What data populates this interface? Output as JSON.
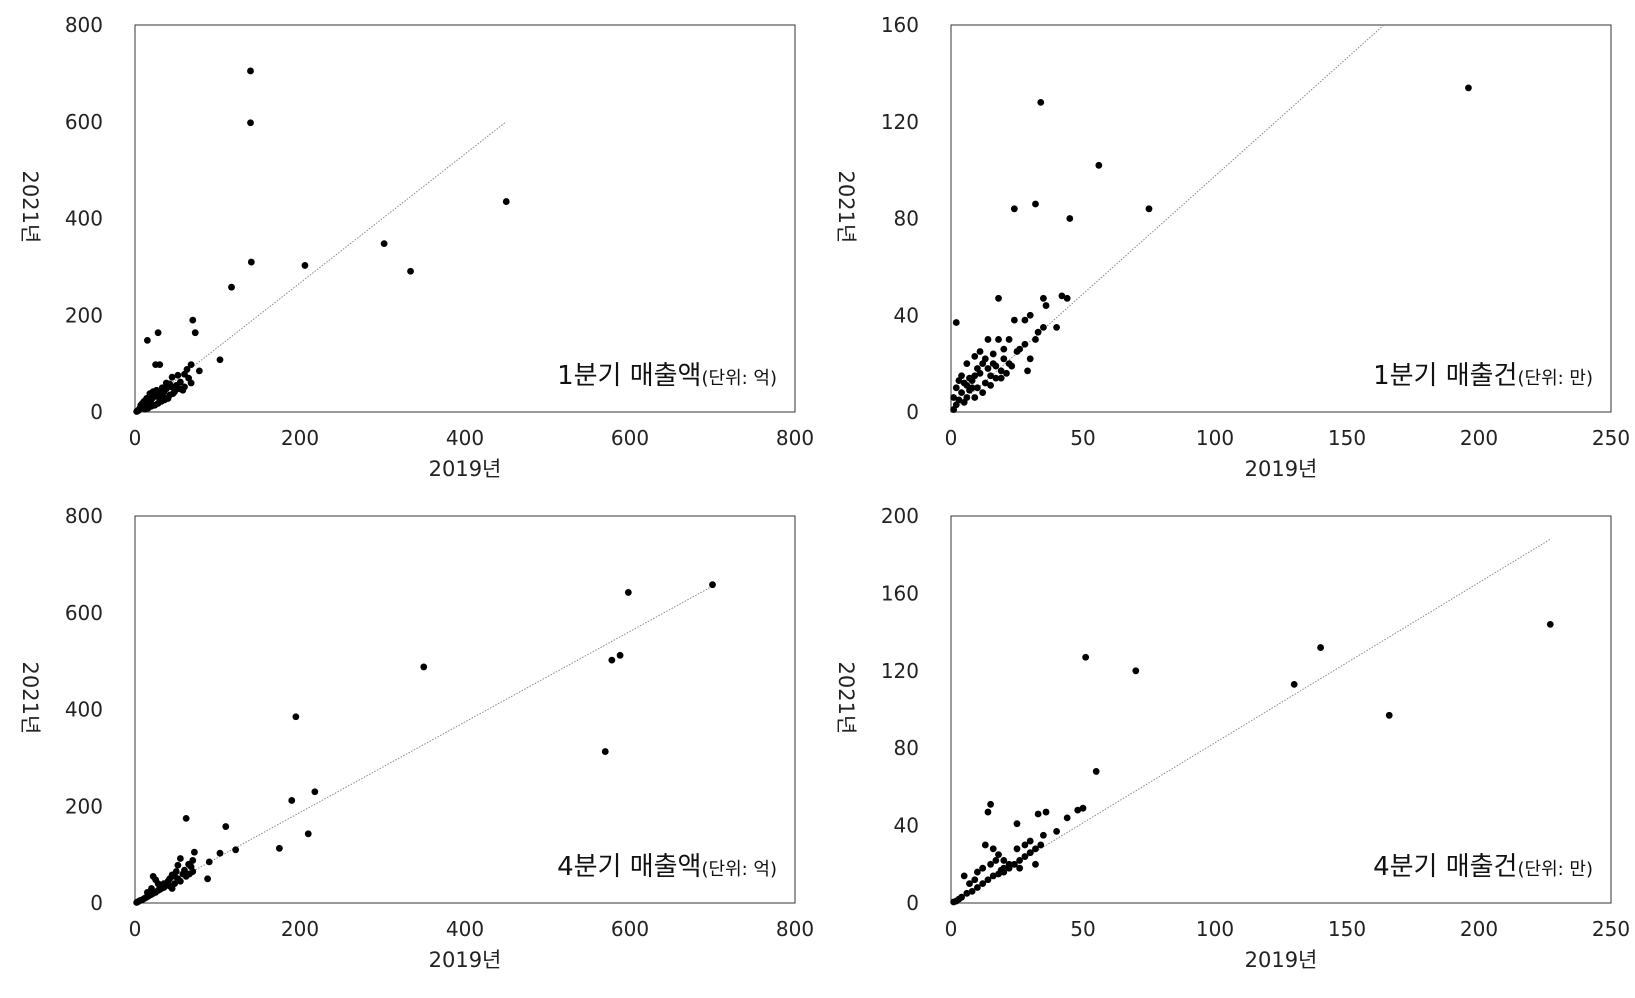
{
  "chart_data": [
    {
      "type": "scatter",
      "xlabel": "2019년",
      "ylabel": "2021년",
      "xlim": [
        0,
        800
      ],
      "ylim": [
        0,
        800
      ],
      "xticks": [
        "0",
        "200",
        "400",
        "600",
        "800"
      ],
      "yticks": [
        "0",
        "200",
        "400",
        "600",
        "800"
      ],
      "grid": false,
      "annotation": {
        "main": "1분기 매출액",
        "unit": "(단위: 억)"
      },
      "trendline": {
        "x": [
          0,
          450
        ],
        "y": [
          0,
          600
        ]
      },
      "points": [
        [
          140,
          705
        ],
        [
          140,
          598
        ],
        [
          141,
          310
        ],
        [
          117,
          258
        ],
        [
          206,
          303
        ],
        [
          302,
          348
        ],
        [
          334,
          291
        ],
        [
          450,
          435
        ],
        [
          70,
          190
        ],
        [
          73,
          164
        ],
        [
          28,
          164
        ],
        [
          15,
          148
        ],
        [
          25,
          98
        ],
        [
          30,
          98
        ],
        [
          103,
          108
        ],
        [
          78,
          85
        ],
        [
          68,
          98
        ],
        [
          63,
          88
        ],
        [
          60,
          78
        ],
        [
          52,
          76
        ],
        [
          45,
          72
        ],
        [
          68,
          60
        ],
        [
          55,
          62
        ],
        [
          60,
          52
        ],
        [
          58,
          45
        ],
        [
          50,
          55
        ],
        [
          42,
          58
        ],
        [
          38,
          48
        ],
        [
          35,
          42
        ],
        [
          30,
          38
        ],
        [
          28,
          32
        ],
        [
          25,
          36
        ],
        [
          22,
          30
        ],
        [
          20,
          26
        ],
        [
          18,
          22
        ],
        [
          15,
          20
        ],
        [
          12,
          16
        ],
        [
          10,
          12
        ],
        [
          8,
          10
        ],
        [
          6,
          8
        ],
        [
          5,
          5
        ],
        [
          4,
          3
        ],
        [
          3,
          2
        ],
        [
          2,
          1
        ],
        [
          35,
          30
        ],
        [
          32,
          22
        ],
        [
          28,
          18
        ],
        [
          24,
          14
        ],
        [
          20,
          12
        ],
        [
          16,
          8
        ],
        [
          42,
          35
        ],
        [
          48,
          42
        ],
        [
          40,
          28
        ],
        [
          36,
          25
        ],
        [
          22,
          42
        ],
        [
          18,
          38
        ],
        [
          14,
          28
        ],
        [
          11,
          22
        ],
        [
          9,
          18
        ],
        [
          7,
          14
        ],
        [
          12,
          6
        ],
        [
          26,
          45
        ],
        [
          44,
          52
        ],
        [
          54,
          48
        ],
        [
          65,
          70
        ],
        [
          46,
          38
        ],
        [
          33,
          50
        ],
        [
          38,
          60
        ],
        [
          20,
          34
        ],
        [
          30,
          26
        ]
      ]
    },
    {
      "type": "scatter",
      "xlabel": "2019년",
      "ylabel": "2021년",
      "xlim": [
        0,
        250
      ],
      "ylim": [
        0,
        160
      ],
      "xticks": [
        "0",
        "50",
        "100",
        "150",
        "200",
        "250"
      ],
      "yticks": [
        "0",
        "40",
        "80",
        "120",
        "160"
      ],
      "grid": false,
      "annotation": {
        "main": "1분기 매출건",
        "unit": "(단위: 만)"
      },
      "trendline": {
        "x": [
          0,
          164
        ],
        "y": [
          0,
          160
        ]
      },
      "points": [
        [
          196,
          134
        ],
        [
          34,
          128
        ],
        [
          56,
          102
        ],
        [
          32,
          86
        ],
        [
          24,
          84
        ],
        [
          45,
          80
        ],
        [
          75,
          84
        ],
        [
          2,
          37
        ],
        [
          18,
          47
        ],
        [
          35,
          47
        ],
        [
          42,
          48
        ],
        [
          44,
          47
        ],
        [
          36,
          44
        ],
        [
          30,
          40
        ],
        [
          28,
          38
        ],
        [
          24,
          38
        ],
        [
          35,
          35
        ],
        [
          40,
          35
        ],
        [
          33,
          33
        ],
        [
          32,
          30
        ],
        [
          28,
          28
        ],
        [
          26,
          26
        ],
        [
          25,
          25
        ],
        [
          30,
          22
        ],
        [
          29,
          17
        ],
        [
          22,
          20
        ],
        [
          20,
          22
        ],
        [
          19,
          17
        ],
        [
          17,
          19
        ],
        [
          15,
          15
        ],
        [
          14,
          18
        ],
        [
          13,
          22
        ],
        [
          14,
          30
        ],
        [
          16,
          24
        ],
        [
          12,
          20
        ],
        [
          11,
          25
        ],
        [
          10,
          18
        ],
        [
          9,
          15
        ],
        [
          8,
          13
        ],
        [
          8,
          10
        ],
        [
          7,
          14
        ],
        [
          6,
          11
        ],
        [
          5,
          12
        ],
        [
          4,
          8
        ],
        [
          3,
          5
        ],
        [
          2,
          3
        ],
        [
          1,
          1
        ],
        [
          5,
          4
        ],
        [
          6,
          6
        ],
        [
          7,
          9
        ],
        [
          9,
          6
        ],
        [
          10,
          10
        ],
        [
          12,
          8
        ],
        [
          13,
          12
        ],
        [
          15,
          11
        ],
        [
          17,
          14
        ],
        [
          19,
          14
        ],
        [
          21,
          16
        ],
        [
          23,
          19
        ],
        [
          20,
          26
        ],
        [
          18,
          30
        ],
        [
          22,
          30
        ],
        [
          3,
          13
        ],
        [
          4,
          15
        ],
        [
          6,
          20
        ],
        [
          2,
          10
        ],
        [
          1,
          6
        ],
        [
          9,
          23
        ],
        [
          11,
          16
        ],
        [
          16,
          20
        ]
      ]
    },
    {
      "type": "scatter",
      "xlabel": "2019년",
      "ylabel": "2021년",
      "xlim": [
        0,
        800
      ],
      "ylim": [
        0,
        800
      ],
      "xticks": [
        "0",
        "200",
        "400",
        "600",
        "800"
      ],
      "yticks": [
        "0",
        "200",
        "400",
        "600",
        "800"
      ],
      "grid": false,
      "annotation": {
        "main": "4분기 매출액",
        "unit": "(단위: 억)"
      },
      "trendline": {
        "x": [
          0,
          700
        ],
        "y": [
          0,
          655
        ]
      },
      "points": [
        [
          700,
          658
        ],
        [
          598,
          642
        ],
        [
          588,
          512
        ],
        [
          578,
          502
        ],
        [
          570,
          313
        ],
        [
          350,
          488
        ],
        [
          195,
          385
        ],
        [
          218,
          230
        ],
        [
          190,
          212
        ],
        [
          210,
          143
        ],
        [
          175,
          113
        ],
        [
          122,
          110
        ],
        [
          110,
          158
        ],
        [
          103,
          103
        ],
        [
          90,
          85
        ],
        [
          88,
          50
        ],
        [
          62,
          175
        ],
        [
          72,
          105
        ],
        [
          70,
          88
        ],
        [
          68,
          75
        ],
        [
          65,
          80
        ],
        [
          60,
          68
        ],
        [
          58,
          60
        ],
        [
          55,
          92
        ],
        [
          52,
          78
        ],
        [
          50,
          65
        ],
        [
          48,
          55
        ],
        [
          45,
          58
        ],
        [
          42,
          50
        ],
        [
          40,
          45
        ],
        [
          38,
          38
        ],
        [
          35,
          32
        ],
        [
          32,
          30
        ],
        [
          30,
          28
        ],
        [
          28,
          26
        ],
        [
          25,
          22
        ],
        [
          22,
          20
        ],
        [
          20,
          18
        ],
        [
          18,
          16
        ],
        [
          16,
          14
        ],
        [
          14,
          12
        ],
        [
          12,
          10
        ],
        [
          10,
          8
        ],
        [
          8,
          6
        ],
        [
          6,
          5
        ],
        [
          4,
          3
        ],
        [
          2,
          1
        ],
        [
          22,
          55
        ],
        [
          25,
          48
        ],
        [
          35,
          40
        ],
        [
          42,
          35
        ],
        [
          48,
          40
        ],
        [
          55,
          45
        ],
        [
          62,
          55
        ],
        [
          66,
          60
        ],
        [
          30,
          35
        ],
        [
          28,
          40
        ],
        [
          20,
          30
        ],
        [
          15,
          22
        ],
        [
          52,
          50
        ],
        [
          70,
          65
        ],
        [
          45,
          30
        ]
      ]
    },
    {
      "type": "scatter",
      "xlabel": "2019년",
      "ylabel": "2021년",
      "xlim": [
        0,
        250
      ],
      "ylim": [
        0,
        200
      ],
      "xticks": [
        "0",
        "50",
        "100",
        "150",
        "200",
        "250"
      ],
      "yticks": [
        "0",
        "40",
        "80",
        "120",
        "160",
        "200"
      ],
      "grid": false,
      "annotation": {
        "main": "4분기 매출건",
        "unit": "(단위: 만)"
      },
      "trendline": {
        "x": [
          0,
          227
        ],
        "y": [
          0,
          188
        ]
      },
      "points": [
        [
          227,
          144
        ],
        [
          140,
          132
        ],
        [
          130,
          113
        ],
        [
          166,
          97
        ],
        [
          51,
          127
        ],
        [
          70,
          120
        ],
        [
          55,
          68
        ],
        [
          15,
          51
        ],
        [
          14,
          47
        ],
        [
          50,
          49
        ],
        [
          48,
          48
        ],
        [
          44,
          44
        ],
        [
          40,
          37
        ],
        [
          36,
          47
        ],
        [
          33,
          46
        ],
        [
          25,
          41
        ],
        [
          35,
          35
        ],
        [
          34,
          30
        ],
        [
          32,
          28
        ],
        [
          30,
          26
        ],
        [
          28,
          24
        ],
        [
          26,
          22
        ],
        [
          24,
          20
        ],
        [
          22,
          18
        ],
        [
          20,
          16
        ],
        [
          18,
          15
        ],
        [
          16,
          14
        ],
        [
          14,
          12
        ],
        [
          12,
          10
        ],
        [
          10,
          8
        ],
        [
          8,
          6
        ],
        [
          6,
          5
        ],
        [
          4,
          3
        ],
        [
          2,
          1
        ],
        [
          5,
          14
        ],
        [
          13,
          30
        ],
        [
          16,
          28
        ],
        [
          18,
          25
        ],
        [
          20,
          22
        ],
        [
          22,
          20
        ],
        [
          15,
          20
        ],
        [
          12,
          18
        ],
        [
          10,
          16
        ],
        [
          9,
          12
        ],
        [
          7,
          10
        ],
        [
          3,
          2
        ],
        [
          1,
          0.5
        ],
        [
          25,
          28
        ],
        [
          28,
          30
        ],
        [
          30,
          32
        ],
        [
          26,
          18
        ],
        [
          32,
          20
        ],
        [
          20,
          18
        ],
        [
          17,
          22
        ],
        [
          19,
          17
        ]
      ]
    }
  ]
}
